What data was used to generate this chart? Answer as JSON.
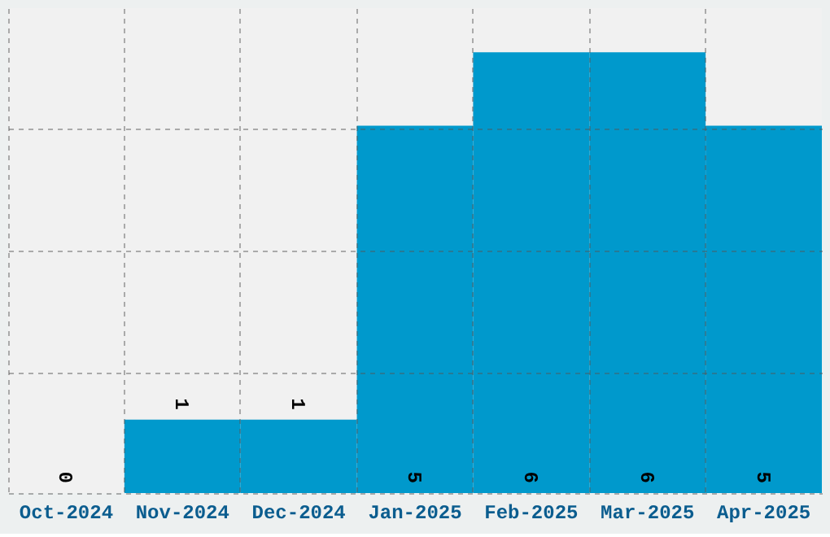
{
  "chart_data": {
    "type": "bar",
    "categories": [
      "Oct-2024",
      "Nov-2024",
      "Dec-2024",
      "Jan-2025",
      "Feb-2025",
      "Mar-2025",
      "Apr-2025"
    ],
    "values": [
      0,
      1,
      1,
      5,
      6,
      6,
      5
    ],
    "color": "#0099cc",
    "ylim": [
      0,
      6.6
    ],
    "yticks": [
      {
        "value": 0,
        "label": null
      },
      {
        "value": 1.65,
        "label": null
      },
      {
        "value": 3.3,
        "label": null
      },
      {
        "value": 4.95,
        "label": null
      }
    ],
    "tick_labels": "x",
    "grid": true,
    "data_labels": true
  }
}
